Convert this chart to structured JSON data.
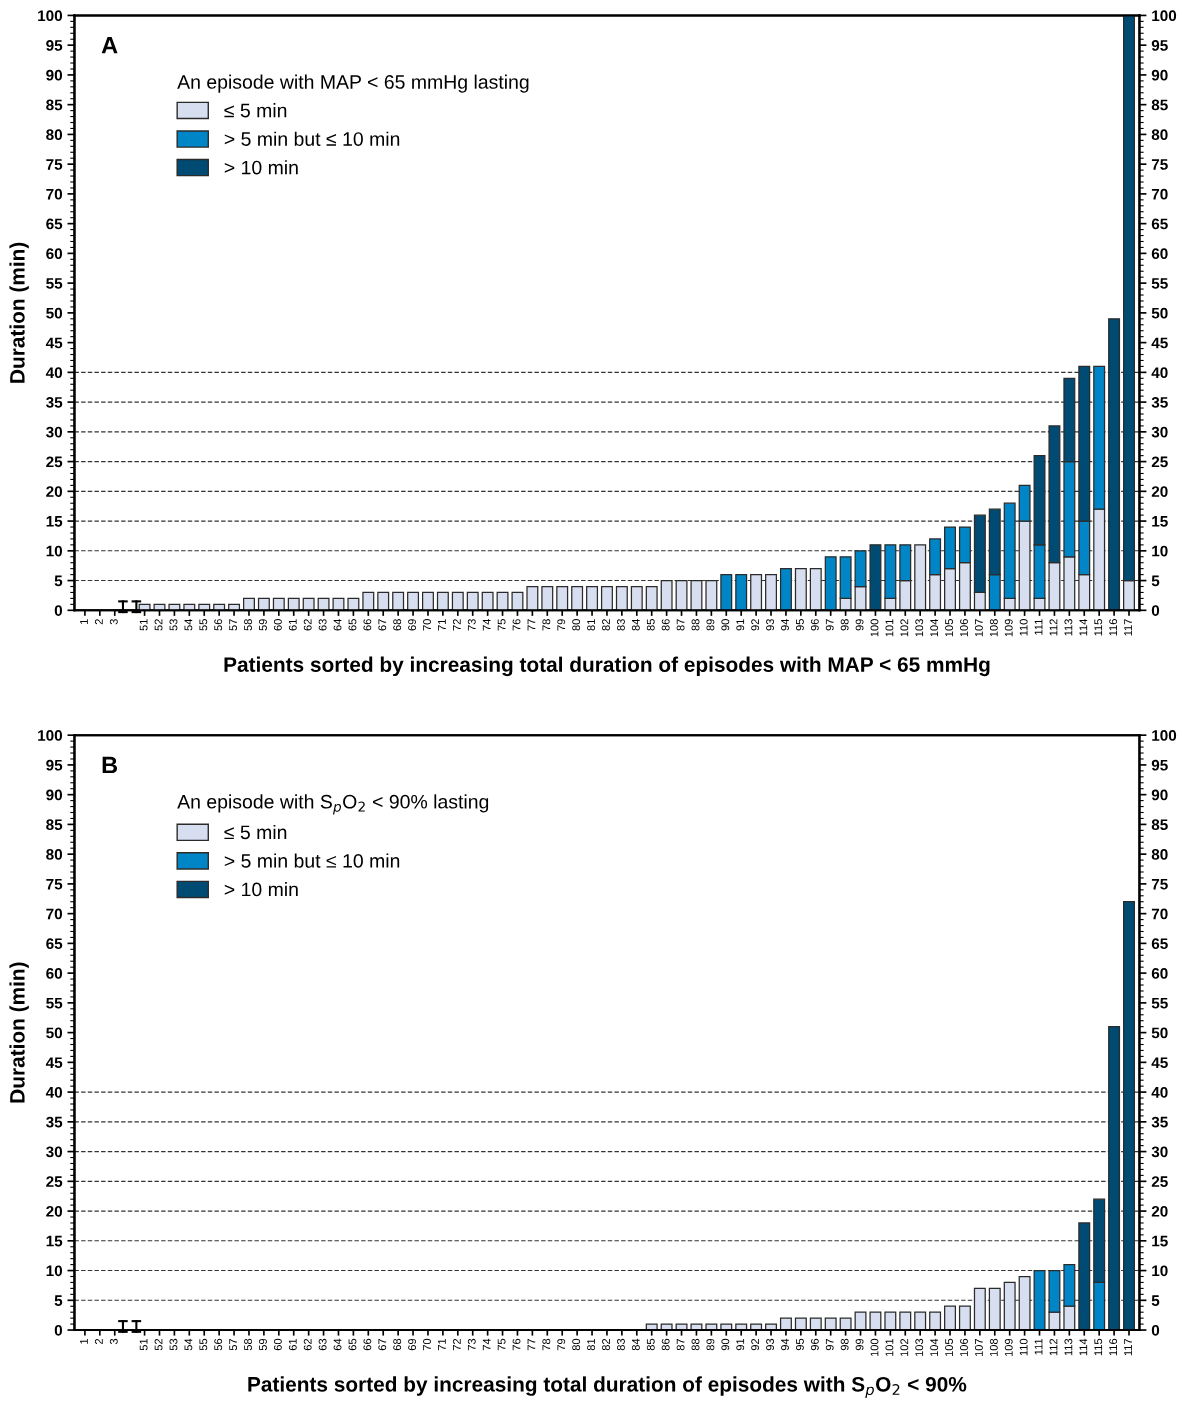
{
  "chart_data": [
    {
      "type": "bar",
      "stacked": true,
      "xlabel": "Patients sorted by increasing total duration of episodes with MAP < 65 mmHg",
      "ylabel": "Duration (min)",
      "legend_title": "An episode with MAP < 65 mmHg lasting",
      "legend": "top left",
      "annotations": [
        "A"
      ],
      "categories": [
        "1",
        "2",
        "3",
        null,
        "51",
        "52",
        "53",
        "54",
        "55",
        "56",
        "57",
        "58",
        "59",
        "60",
        "61",
        "62",
        "63",
        "64",
        "65",
        "66",
        "67",
        "68",
        "69",
        "70",
        "71",
        "72",
        "73",
        "74",
        "75",
        "76",
        "77",
        "78",
        "79",
        "80",
        "81",
        "82",
        "83",
        "84",
        "85",
        "86",
        "87",
        "88",
        "89",
        "90",
        "91",
        "92",
        "93",
        "94",
        "95",
        "96",
        "97",
        "98",
        "99",
        "100",
        "101",
        "102",
        "103",
        "104",
        "105",
        "106",
        "107",
        "108",
        "109",
        "110",
        "111",
        "112",
        "113",
        "114",
        "115",
        "116",
        "117"
      ],
      "series": [
        {
          "name": "≤ 5 min",
          "color": "#d6deef",
          "values": [
            0,
            0,
            0,
            null,
            1,
            1,
            1,
            1,
            1,
            1,
            1,
            2,
            2,
            2,
            2,
            2,
            2,
            2,
            2,
            3,
            3,
            3,
            3,
            3,
            3,
            3,
            3,
            3,
            3,
            3,
            4,
            4,
            4,
            4,
            4,
            4,
            4,
            4,
            4,
            5,
            5,
            5,
            5,
            0,
            0,
            6,
            6,
            0,
            7,
            7,
            0,
            2,
            4,
            0,
            2,
            5,
            11,
            6,
            7,
            8,
            3,
            0,
            2,
            15,
            2,
            8,
            9,
            6,
            17,
            0,
            5
          ]
        },
        {
          "name": "> 5 min but ≤ 10 min",
          "color": "#0086c6",
          "values": [
            0,
            0,
            0,
            null,
            0,
            0,
            0,
            0,
            0,
            0,
            0,
            0,
            0,
            0,
            0,
            0,
            0,
            0,
            0,
            0,
            0,
            0,
            0,
            0,
            0,
            0,
            0,
            0,
            0,
            0,
            0,
            0,
            0,
            0,
            0,
            0,
            0,
            0,
            0,
            0,
            0,
            0,
            0,
            6,
            6,
            0,
            0,
            7,
            0,
            0,
            9,
            7,
            6,
            0,
            9,
            6,
            0,
            6,
            7,
            6,
            0,
            6,
            16,
            6,
            9,
            0,
            16,
            9,
            24,
            0,
            0
          ]
        },
        {
          "name": "> 10 min",
          "color": "#004b73",
          "values": [
            0,
            0,
            0,
            null,
            0,
            0,
            0,
            0,
            0,
            0,
            0,
            0,
            0,
            0,
            0,
            0,
            0,
            0,
            0,
            0,
            0,
            0,
            0,
            0,
            0,
            0,
            0,
            0,
            0,
            0,
            0,
            0,
            0,
            0,
            0,
            0,
            0,
            0,
            0,
            0,
            0,
            0,
            0,
            0,
            0,
            0,
            0,
            0,
            0,
            0,
            0,
            0,
            0,
            11,
            0,
            0,
            0,
            0,
            0,
            0,
            13,
            11,
            0,
            0,
            15,
            23,
            14,
            26,
            0,
            49,
            95
          ]
        }
      ],
      "ylim": [
        0,
        100
      ],
      "yticks": [
        0,
        5,
        10,
        15,
        20,
        25,
        30,
        35,
        40,
        45,
        50,
        55,
        60,
        65,
        70,
        75,
        80,
        85,
        90,
        95,
        100
      ],
      "y2lim": [
        0,
        100
      ],
      "y2ticks": [
        0,
        5,
        10,
        15,
        20,
        25,
        30,
        35,
        40,
        45,
        50,
        55,
        60,
        65,
        70,
        75,
        80,
        85,
        90,
        95,
        100
      ],
      "ref_lines": [
        {
          "axis": "y",
          "value": 5,
          "line_style": "dashed"
        },
        {
          "axis": "y",
          "value": 10,
          "line_style": "dashed"
        },
        {
          "axis": "y",
          "value": 15,
          "line_style": "dashed"
        },
        {
          "axis": "y",
          "value": 20,
          "line_style": "dashed"
        },
        {
          "axis": "y",
          "value": 25,
          "line_style": "dashed"
        },
        {
          "axis": "y",
          "value": 30,
          "line_style": "dashed"
        },
        {
          "axis": "y",
          "value": 35,
          "line_style": "dashed"
        },
        {
          "axis": "y",
          "value": 40,
          "line_style": "dashed"
        }
      ]
    },
    {
      "type": "bar",
      "stacked": true,
      "xlabel": "Patients sorted by increasing total duration of episodes with S$_{p}$O$_{2}$ < 90%",
      "ylabel": "Duration (min)",
      "legend_title": "An episode with S$_{p}$O$_{2}$ < 90% lasting",
      "legend": "top left",
      "annotations": [
        "B"
      ],
      "categories": [
        "1",
        "2",
        "3",
        null,
        "51",
        "52",
        "53",
        "54",
        "55",
        "56",
        "57",
        "58",
        "59",
        "60",
        "61",
        "62",
        "63",
        "64",
        "65",
        "66",
        "67",
        "68",
        "69",
        "70",
        "71",
        "72",
        "73",
        "74",
        "75",
        "76",
        "77",
        "78",
        "79",
        "80",
        "81",
        "82",
        "83",
        "84",
        "85",
        "86",
        "87",
        "88",
        "89",
        "90",
        "91",
        "92",
        "93",
        "94",
        "95",
        "96",
        "97",
        "98",
        "99",
        "100",
        "101",
        "102",
        "103",
        "104",
        "105",
        "106",
        "107",
        "108",
        "109",
        "110",
        "111",
        "112",
        "113",
        "114",
        "115",
        "116",
        "117"
      ],
      "series": [
        {
          "name": "≤ 5 min",
          "color": "#d6deef",
          "values": [
            0,
            0,
            0,
            null,
            0,
            0,
            0,
            0,
            0,
            0,
            0,
            0,
            0,
            0,
            0,
            0,
            0,
            0,
            0,
            0,
            0,
            0,
            0,
            0,
            0,
            0,
            0,
            0,
            0,
            0,
            0,
            0,
            0,
            0,
            0,
            0,
            0,
            0,
            1,
            1,
            1,
            1,
            1,
            1,
            1,
            1,
            1,
            2,
            2,
            2,
            2,
            2,
            3,
            3,
            3,
            3,
            3,
            3,
            4,
            4,
            7,
            7,
            8,
            9,
            0,
            3,
            4,
            0,
            0,
            0,
            0
          ]
        },
        {
          "name": "> 5 min but ≤ 10 min",
          "color": "#0086c6",
          "values": [
            0,
            0,
            0,
            null,
            0,
            0,
            0,
            0,
            0,
            0,
            0,
            0,
            0,
            0,
            0,
            0,
            0,
            0,
            0,
            0,
            0,
            0,
            0,
            0,
            0,
            0,
            0,
            0,
            0,
            0,
            0,
            0,
            0,
            0,
            0,
            0,
            0,
            0,
            0,
            0,
            0,
            0,
            0,
            0,
            0,
            0,
            0,
            0,
            0,
            0,
            0,
            0,
            0,
            0,
            0,
            0,
            0,
            0,
            0,
            0,
            0,
            0,
            0,
            0,
            10,
            7,
            7,
            0,
            8,
            0,
            0
          ]
        },
        {
          "name": "> 10 min",
          "color": "#004b73",
          "values": [
            0,
            0,
            0,
            null,
            0,
            0,
            0,
            0,
            0,
            0,
            0,
            0,
            0,
            0,
            0,
            0,
            0,
            0,
            0,
            0,
            0,
            0,
            0,
            0,
            0,
            0,
            0,
            0,
            0,
            0,
            0,
            0,
            0,
            0,
            0,
            0,
            0,
            0,
            0,
            0,
            0,
            0,
            0,
            0,
            0,
            0,
            0,
            0,
            0,
            0,
            0,
            0,
            0,
            0,
            0,
            0,
            0,
            0,
            0,
            0,
            0,
            0,
            0,
            0,
            0,
            0,
            0,
            18,
            14,
            51,
            72
          ]
        }
      ],
      "ylim": [
        0,
        100
      ],
      "yticks": [
        0,
        5,
        10,
        15,
        20,
        25,
        30,
        35,
        40,
        45,
        50,
        55,
        60,
        65,
        70,
        75,
        80,
        85,
        90,
        95,
        100
      ],
      "y2lim": [
        0,
        100
      ],
      "y2ticks": [
        0,
        5,
        10,
        15,
        20,
        25,
        30,
        35,
        40,
        45,
        50,
        55,
        60,
        65,
        70,
        75,
        80,
        85,
        90,
        95,
        100
      ],
      "ref_lines": [
        {
          "axis": "y",
          "value": 5,
          "line_style": "dashed"
        },
        {
          "axis": "y",
          "value": 10,
          "line_style": "dashed"
        },
        {
          "axis": "y",
          "value": 15,
          "line_style": "dashed"
        },
        {
          "axis": "y",
          "value": 20,
          "line_style": "dashed"
        },
        {
          "axis": "y",
          "value": 25,
          "line_style": "dashed"
        },
        {
          "axis": "y",
          "value": 30,
          "line_style": "dashed"
        },
        {
          "axis": "y",
          "value": 35,
          "line_style": "dashed"
        },
        {
          "axis": "y",
          "value": 40,
          "line_style": "dashed"
        }
      ]
    }
  ]
}
